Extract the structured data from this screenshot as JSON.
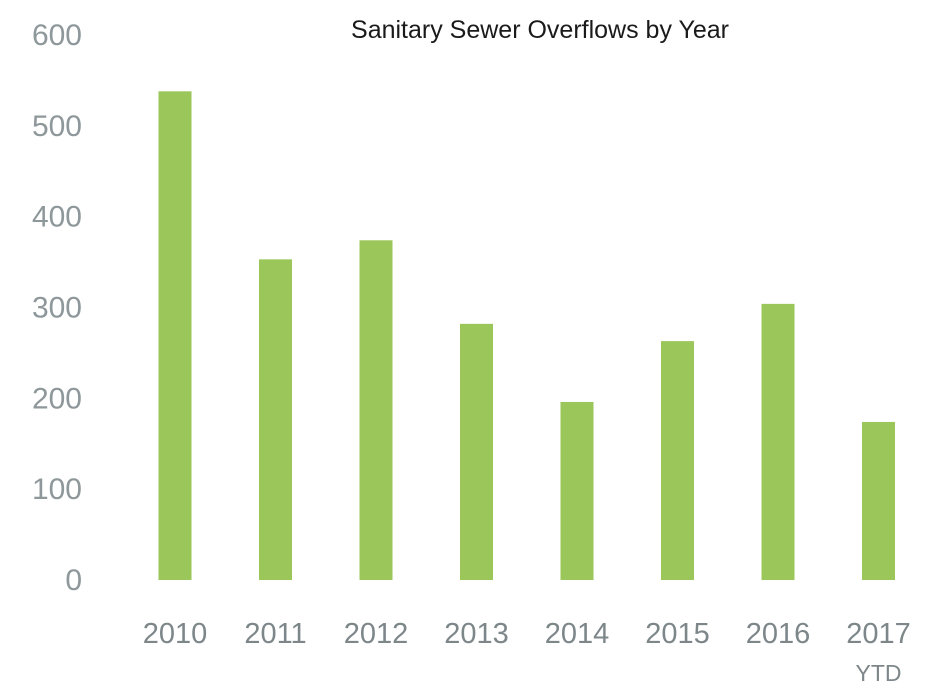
{
  "chart_data": {
    "type": "bar",
    "title": "Sanitary Sewer Overflows by Year",
    "xlabel": "",
    "ylabel": "",
    "categories": [
      "2010",
      "2011",
      "2012",
      "2013",
      "2014",
      "2015",
      "2016",
      "2017"
    ],
    "category_sublabels": [
      "",
      "",
      "",
      "",
      "",
      "",
      "",
      "YTD"
    ],
    "values": [
      538,
      353,
      374,
      282,
      196,
      263,
      304,
      174
    ],
    "ylim": [
      0,
      600
    ],
    "yticks": [
      0,
      100,
      200,
      300,
      400,
      500,
      600
    ],
    "grid": false,
    "legend": "none",
    "bar_color": "#9bc75a",
    "axis_text_color": "#8e979a"
  }
}
